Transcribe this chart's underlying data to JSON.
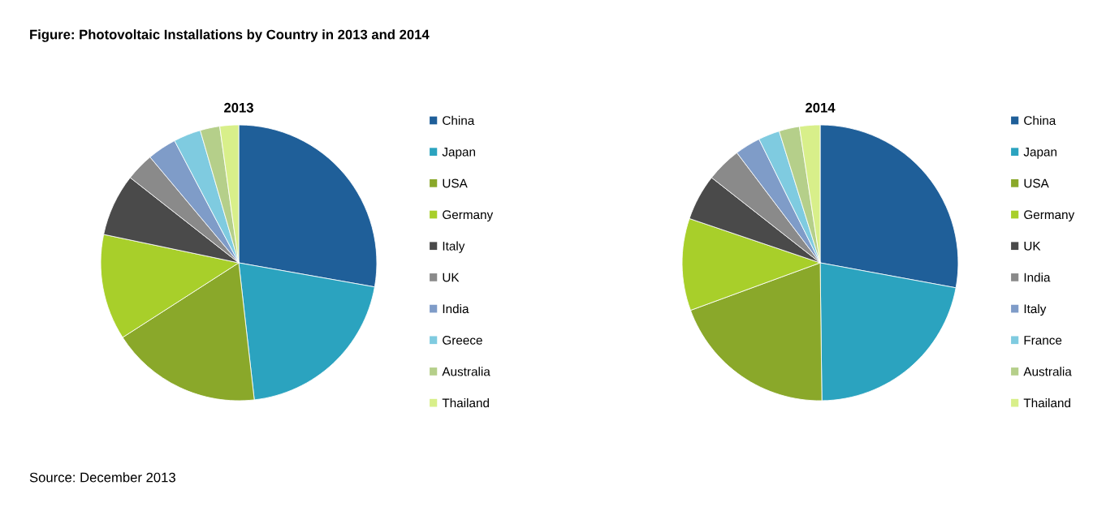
{
  "chart_data": [
    {
      "type": "pie",
      "title": "2013",
      "legend": "right",
      "categories": [
        "China",
        "Japan",
        "USA",
        "Germany",
        "Italy",
        "UK",
        "India",
        "Greece",
        "Australia",
        "Thailand"
      ],
      "values": [
        27.8,
        20.4,
        17.7,
        12.4,
        7.3,
        3.3,
        3.4,
        3.2,
        2.3,
        2.2
      ],
      "colors": [
        "#1f5f99",
        "#2ba3bf",
        "#8aa82a",
        "#a8cf2a",
        "#4a4a4a",
        "#8a8a8a",
        "#7f9cc8",
        "#7fcbe0",
        "#b5cf8a",
        "#d8ef8a"
      ],
      "annotations": [
        "Figure: Photovoltaic Installations by Country in 2013 and 2014",
        "Source: December 2013"
      ]
    },
    {
      "type": "pie",
      "title": "2014",
      "legend": "right",
      "categories": [
        "China",
        "Japan",
        "USA",
        "Germany",
        "UK",
        "India",
        "Italy",
        "France",
        "Australia",
        "Thailand"
      ],
      "values": [
        27.9,
        21.9,
        19.6,
        10.8,
        5.4,
        4.1,
        3.0,
        2.5,
        2.4,
        2.4
      ],
      "colors": [
        "#1f5f99",
        "#2ba3bf",
        "#8aa82a",
        "#a8cf2a",
        "#4a4a4a",
        "#8a8a8a",
        "#7f9cc8",
        "#7fcbe0",
        "#b5cf8a",
        "#d8ef8a"
      ]
    }
  ]
}
